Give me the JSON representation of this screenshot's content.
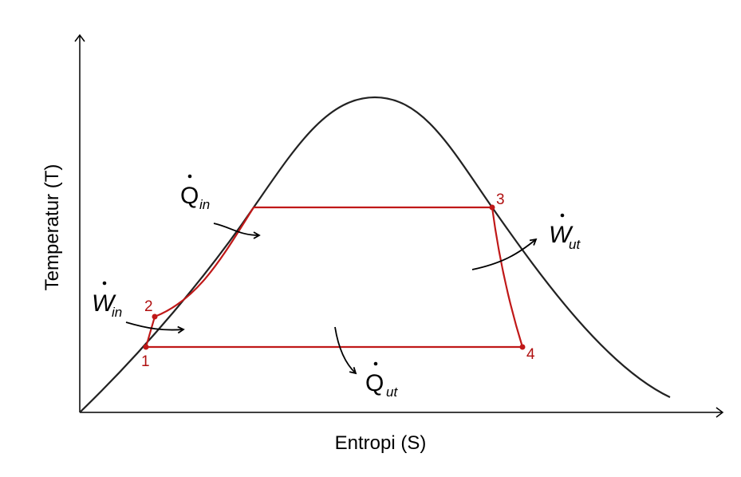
{
  "axes": {
    "x_label": "Entropi (S)",
    "y_label": "Temperatur (T)"
  },
  "points": [
    {
      "label": "1"
    },
    {
      "label": "2"
    },
    {
      "label": "3"
    },
    {
      "label": "4"
    }
  ],
  "annotations": [
    {
      "symbol": "Q",
      "subscript": "in"
    },
    {
      "symbol": "W",
      "subscript": "in"
    },
    {
      "symbol": "W",
      "subscript": "ut"
    },
    {
      "symbol": "Q",
      "subscript": "ut"
    }
  ]
}
